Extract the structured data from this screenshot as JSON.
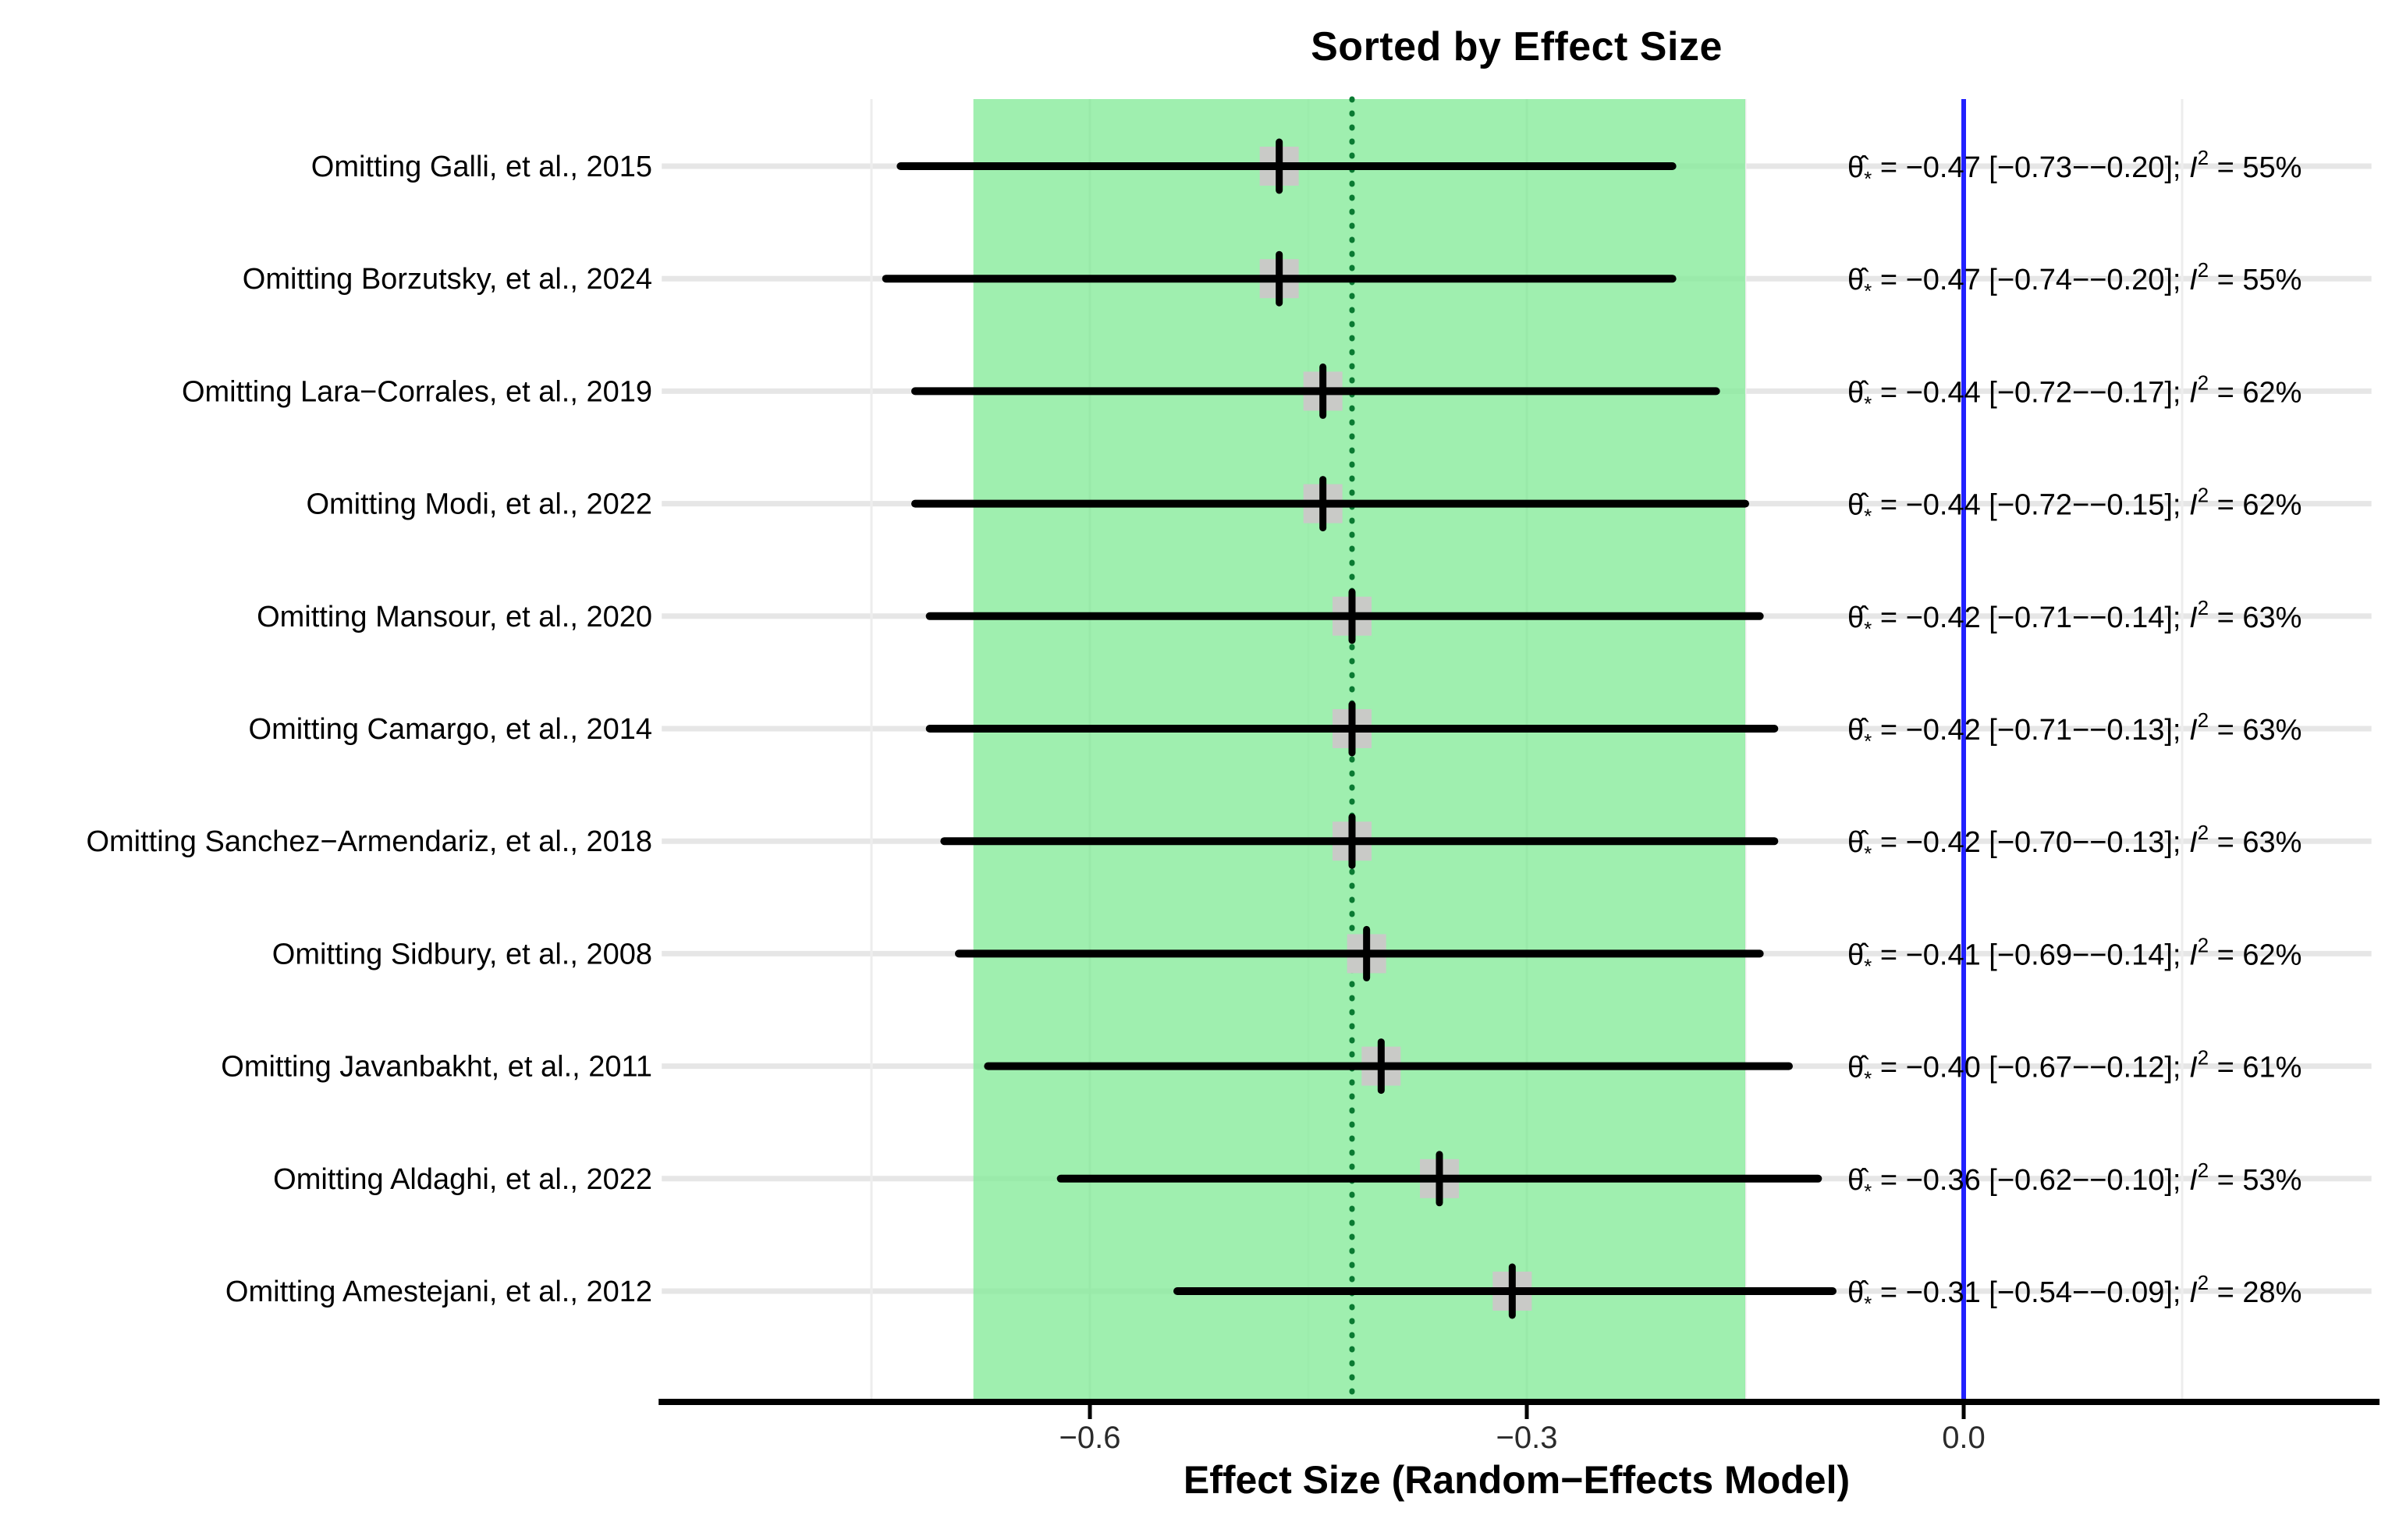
{
  "figure": {
    "title": "Sorted by Effect Size",
    "x_axis": {
      "label": "Effect Size (Random−Effects Model)",
      "tick_labels": [
        "−0.6",
        "−0.3",
        "0.0"
      ]
    }
  },
  "chart_data": {
    "type": "forest",
    "title": "Sorted by Effect Size",
    "xlabel": "Effect Size (Random−Effects Model)",
    "xlim": [
      -0.894,
      0.28
    ],
    "x_ticks": [
      -0.6,
      -0.3,
      0.0
    ],
    "grid_minor_x": [
      -0.75,
      -0.45,
      -0.15,
      0.15
    ],
    "zero_line_x": 0.0,
    "pooled_estimate": -0.42,
    "pooled_ci": [
      -0.68,
      -0.15
    ],
    "rows": [
      {
        "label": "Omitting Galli, et al., 2015",
        "estimate": -0.47,
        "ci_lo": -0.73,
        "ci_hi": -0.2,
        "i2": 55
      },
      {
        "label": "Omitting Borzutsky, et al., 2024",
        "estimate": -0.47,
        "ci_lo": -0.74,
        "ci_hi": -0.2,
        "i2": 55
      },
      {
        "label": "Omitting Lara−Corrales, et al., 2019",
        "estimate": -0.44,
        "ci_lo": -0.72,
        "ci_hi": -0.17,
        "i2": 62
      },
      {
        "label": "Omitting Modi, et al., 2022",
        "estimate": -0.44,
        "ci_lo": -0.72,
        "ci_hi": -0.15,
        "i2": 62
      },
      {
        "label": "Omitting Mansour, et al., 2020",
        "estimate": -0.42,
        "ci_lo": -0.71,
        "ci_hi": -0.14,
        "i2": 63
      },
      {
        "label": "Omitting Camargo, et al., 2014",
        "estimate": -0.42,
        "ci_lo": -0.71,
        "ci_hi": -0.13,
        "i2": 63
      },
      {
        "label": "Omitting Sanchez−Armendariz, et al., 2018",
        "estimate": -0.42,
        "ci_lo": -0.7,
        "ci_hi": -0.13,
        "i2": 63
      },
      {
        "label": "Omitting Sidbury, et al., 2008",
        "estimate": -0.41,
        "ci_lo": -0.69,
        "ci_hi": -0.14,
        "i2": 62
      },
      {
        "label": "Omitting Javanbakht, et al., 2011",
        "estimate": -0.4,
        "ci_lo": -0.67,
        "ci_hi": -0.12,
        "i2": 61
      },
      {
        "label": "Omitting Aldaghi, et al., 2022",
        "estimate": -0.36,
        "ci_lo": -0.62,
        "ci_hi": -0.1,
        "i2": 53
      },
      {
        "label": "Omitting Amestejani, et al., 2012",
        "estimate": -0.31,
        "ci_lo": -0.54,
        "ci_hi": -0.09,
        "i2": 28
      }
    ],
    "annotation_format": {
      "theta": "θ̂",
      "sub_star": "*",
      "equals": " = ",
      "ci_open": " [",
      "ci_sep": "−",
      "ci_close": "]; ",
      "i_label": "I",
      "i_sup": "2",
      "percent": "%"
    }
  },
  "colors": {
    "band_green": "#87eb9b",
    "pooled_line_green": "#0a7a32",
    "zero_line_blue": "#2121ff",
    "ci_line_black": "#000000",
    "marker_gray": "#c9cac7",
    "grid_gray_h": "#e6e6e6",
    "grid_gray_v": "#e2e2e2",
    "grid_gray_v_minor": "#ededed",
    "axis_black": "#000000",
    "tick_label": "#2b2b2b",
    "text_black": "#000000"
  }
}
